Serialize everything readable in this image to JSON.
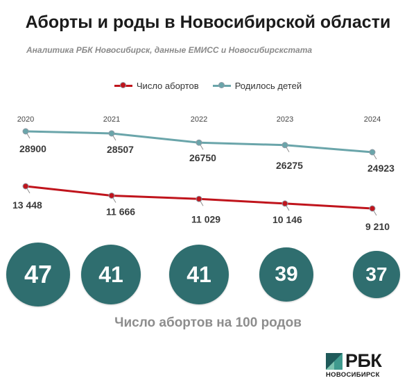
{
  "title": "Аборты и роды в Новосибирской области",
  "subtitle": "Аналитика РБК Новосибирск, данные ЕМИСС и Новосибирскстата",
  "colors": {
    "abortions": "#c0141c",
    "births": "#6aa5aa",
    "circle": "#2f6e6f"
  },
  "chart_data": {
    "type": "line",
    "categories": [
      "2020",
      "2021",
      "2022",
      "2023",
      "2024"
    ],
    "legend_position": "top-center",
    "grid": false,
    "series": [
      {
        "name": "Число абортов",
        "values": [
          13448,
          11666,
          11029,
          10146,
          9210
        ],
        "labels": [
          "13 448",
          "11 666",
          "11 029",
          "10 146",
          "9 210"
        ]
      },
      {
        "name": "Родилось детей",
        "values": [
          28900,
          28507,
          26750,
          26275,
          24923
        ],
        "labels": [
          "28900",
          "28507",
          "26750",
          "26275",
          "24923"
        ]
      }
    ]
  },
  "ratio": {
    "caption": "Число абортов на 100 родов",
    "values": [
      "47",
      "41",
      "41",
      "39",
      "37"
    ]
  },
  "brand": {
    "name": "РБК",
    "region": "НОВОСИБИРСК"
  }
}
